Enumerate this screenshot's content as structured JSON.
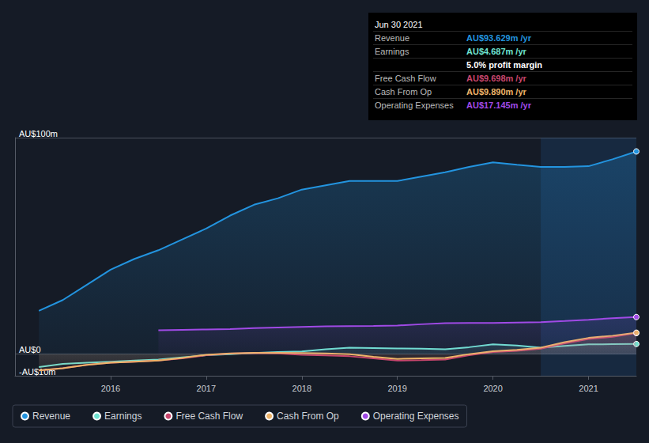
{
  "chart_data": {
    "type": "line",
    "x": [
      2015.25,
      2015.5,
      2015.75,
      2016,
      2016.25,
      2016.5,
      2016.75,
      2017,
      2017.25,
      2017.5,
      2017.75,
      2018,
      2018.25,
      2018.5,
      2018.75,
      2019,
      2019.25,
      2019.5,
      2019.75,
      2020,
      2020.25,
      2020.5,
      2020.75,
      2021,
      2021.25,
      2021.5
    ],
    "series": [
      {
        "name": "Revenue",
        "color": "#2394df",
        "values": [
          20,
          25,
          32,
          39,
          44,
          48,
          53,
          58,
          64,
          69,
          72,
          76,
          78,
          80,
          80,
          80,
          82,
          84,
          86.5,
          88.6,
          87.5,
          86.5,
          86.5,
          86.8,
          90,
          93.629
        ]
      },
      {
        "name": "Earnings",
        "color": "#6fe3d1",
        "values": [
          -6,
          -4.5,
          -4,
          -3.5,
          -3,
          -2.5,
          -1.5,
          -0.5,
          0,
          0.5,
          1,
          1.2,
          2.2,
          3,
          2.8,
          2.6,
          2.5,
          2.2,
          3.2,
          4.5,
          4,
          3,
          3.8,
          4.5,
          4.6,
          4.687
        ]
      },
      {
        "name": "Free Cash Flow",
        "color": "#c8466d",
        "values": [
          -7.5,
          -6.5,
          -5,
          -4,
          -3.5,
          -3,
          -2,
          -0.5,
          0.2,
          0.5,
          0.3,
          -0.3,
          -0.6,
          -1,
          -2,
          -3,
          -2.8,
          -2.5,
          -0.5,
          1,
          1.5,
          2.5,
          5,
          7,
          8,
          9.698
        ]
      },
      {
        "name": "Cash From Op",
        "color": "#eeb469",
        "values": [
          -7.5,
          -6.5,
          -5,
          -4,
          -3.5,
          -3,
          -1.8,
          -0.3,
          0.3,
          0.6,
          0.6,
          0.5,
          0.3,
          0,
          -1.2,
          -2.2,
          -2,
          -1.8,
          0,
          1.3,
          2,
          3,
          5.5,
          7.5,
          8.5,
          9.89
        ]
      },
      {
        "name": "Operating Expenses",
        "color": "#a04ae6",
        "values": [
          null,
          null,
          null,
          null,
          null,
          11,
          11.2,
          11.4,
          11.6,
          12,
          12.3,
          12.6,
          12.8,
          12.9,
          13,
          13.2,
          13.8,
          14.3,
          14.4,
          14.4,
          14.6,
          14.8,
          15.3,
          15.9,
          16.6,
          17.145
        ]
      }
    ],
    "xlim": [
      2015,
      2021.5
    ],
    "xticks": [
      2016,
      2017,
      2018,
      2019,
      2020,
      2021
    ],
    "ylim": [
      -10,
      100
    ],
    "yticks": [
      {
        "value": -10,
        "label": "-AU$10m"
      },
      {
        "value": 0,
        "label": "AU$0"
      },
      {
        "value": 100,
        "label": "AU$100m"
      }
    ],
    "highlight_range": [
      2020.5,
      2021.5
    ],
    "grid": true,
    "legend": "lower left",
    "info_box": {
      "title": "Jun 30 2021",
      "rows": [
        {
          "label": "Revenue",
          "value": "AU$93.629m /yr"
        },
        {
          "label": "Earnings",
          "value": "AU$4.687m /yr"
        },
        {
          "label": "",
          "value": "5.0% profit margin"
        },
        {
          "label": "Free Cash Flow",
          "value": "AU$9.698m /yr"
        },
        {
          "label": "Cash From Op",
          "value": "AU$9.890m /yr"
        },
        {
          "label": "Operating Expenses",
          "value": "AU$17.145m /yr"
        }
      ]
    }
  }
}
